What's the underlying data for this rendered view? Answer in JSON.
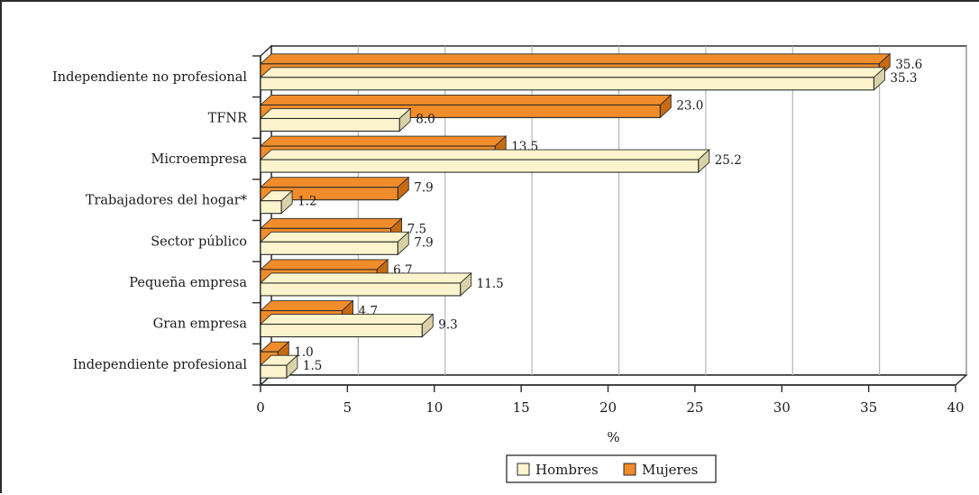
{
  "chart_data": {
    "type": "bar",
    "orientation": "horizontal",
    "style": "3d",
    "categories": [
      "Independiente no profesional",
      "TFNR",
      "Microempresa",
      "Trabajadores del hogar*",
      "Sector público",
      "Pequeña empresa",
      "Gran empresa",
      "Independiente profesional"
    ],
    "series": [
      {
        "name": "Mujeres",
        "color": "#f08c2a",
        "values": [
          35.6,
          23.0,
          13.5,
          7.9,
          7.5,
          6.7,
          4.7,
          1.0
        ],
        "labels": [
          "35.6",
          "23.0",
          "13.5",
          "7.9",
          "7.5",
          "6.7",
          "4.7",
          "1.0"
        ]
      },
      {
        "name": "Hombres",
        "color": "#fbf4cc",
        "values": [
          35.3,
          8.0,
          25.2,
          1.2,
          7.9,
          11.5,
          9.3,
          1.5
        ],
        "labels": [
          "35.3",
          "8.0",
          "25.2",
          "1.2",
          "7.9",
          "11.5",
          "9.3",
          "1.5"
        ]
      }
    ],
    "xlabel": "%",
    "xlim": [
      0,
      40
    ],
    "xticks": [
      "0",
      "5",
      "10",
      "15",
      "20",
      "25",
      "30",
      "35",
      "40"
    ],
    "grid": true,
    "legend": {
      "placement": "bottom-center",
      "order": [
        "Hombres",
        "Mujeres"
      ]
    }
  }
}
